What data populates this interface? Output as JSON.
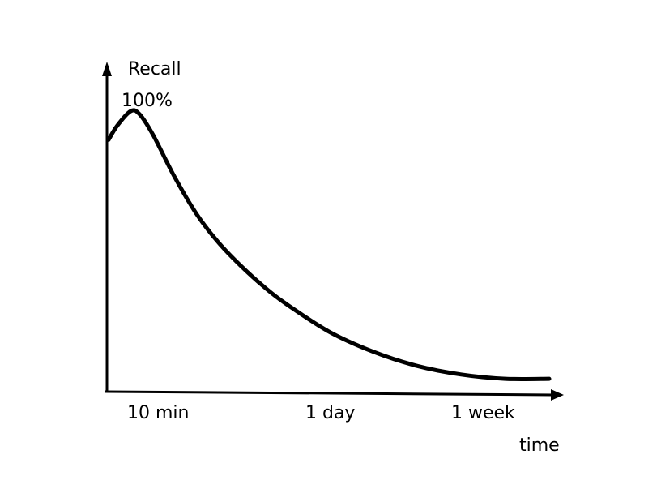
{
  "chart_data": {
    "type": "line",
    "title": "",
    "ylabel": "Recall",
    "ytick_label": "100%",
    "xlabel": "time",
    "x_tick_labels": [
      "10 min",
      "1 day",
      "1 week"
    ],
    "grid": false,
    "legend": "none",
    "series": [
      {
        "x_position_fraction": [
          0,
          0.02,
          0.05,
          0.07,
          0.1,
          0.15,
          0.2,
          0.25,
          0.3,
          0.35,
          0.4,
          0.5,
          0.6,
          0.7,
          0.8,
          0.9,
          1.0
        ],
        "recall_fraction": [
          0.88,
          0.93,
          0.98,
          0.97,
          0.9,
          0.75,
          0.62,
          0.52,
          0.44,
          0.37,
          0.31,
          0.21,
          0.14,
          0.09,
          0.06,
          0.045,
          0.045
        ]
      }
    ],
    "line_color": "#000000"
  }
}
